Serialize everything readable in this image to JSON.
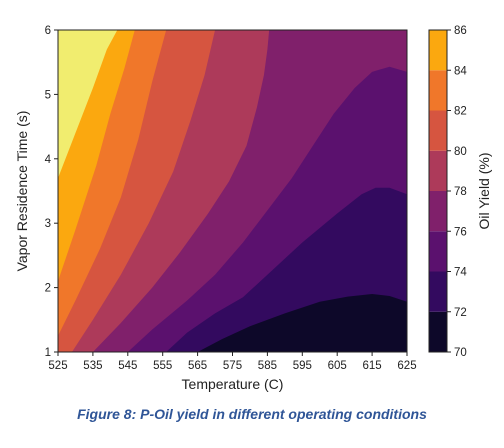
{
  "chart_data": {
    "type": "heatmap",
    "subtype": "filled-contour",
    "xlabel": "Temperature (C)",
    "ylabel": "Vapor Residence Time (s)",
    "colorbar_label": "Oil Yield (%)",
    "xlim": [
      525,
      625
    ],
    "ylim": [
      1,
      6
    ],
    "x_ticks": [
      "525",
      "535",
      "545",
      "555",
      "565",
      "575",
      "585",
      "595",
      "605",
      "615",
      "625"
    ],
    "y_ticks": [
      "1",
      "2",
      "3",
      "4",
      "5",
      "6"
    ],
    "colorbar_ticks": [
      "70",
      "72",
      "74",
      "76",
      "78",
      "80",
      "82",
      "84",
      "86"
    ],
    "levels": [
      70,
      72,
      74,
      76,
      78,
      80,
      82,
      84,
      86
    ],
    "level_colors": [
      "#0d0829",
      "#330a5f",
      "#5b116e",
      "#80206b",
      "#ad3a5a",
      "#d65540",
      "#f0772a",
      "#fba80f",
      "#f1ed6f"
    ],
    "contour_boundaries": [
      {
        "value": 72,
        "points": [
          [
            565,
            1.0
          ],
          [
            572,
            1.2
          ],
          [
            580,
            1.4
          ],
          [
            590,
            1.6
          ],
          [
            600,
            1.78
          ],
          [
            608,
            1.86
          ],
          [
            615,
            1.9
          ],
          [
            620,
            1.87
          ],
          [
            625,
            1.78
          ]
        ]
      },
      {
        "value": 74,
        "points": [
          [
            556,
            1.0
          ],
          [
            562,
            1.3
          ],
          [
            570,
            1.6
          ],
          [
            578,
            1.85
          ],
          [
            585,
            2.2
          ],
          [
            595,
            2.7
          ],
          [
            605,
            3.15
          ],
          [
            612,
            3.45
          ],
          [
            616,
            3.55
          ],
          [
            620,
            3.55
          ],
          [
            625,
            3.45
          ]
        ]
      },
      {
        "value": 76,
        "points": [
          [
            545,
            1.0
          ],
          [
            552,
            1.35
          ],
          [
            562,
            1.8
          ],
          [
            570,
            2.2
          ],
          [
            578,
            2.7
          ],
          [
            585,
            3.2
          ],
          [
            592,
            3.7
          ],
          [
            598,
            4.2
          ],
          [
            604,
            4.7
          ],
          [
            610,
            5.1
          ],
          [
            615,
            5.35
          ],
          [
            620,
            5.43
          ],
          [
            625,
            5.35
          ]
        ]
      },
      {
        "value": 78,
        "points": [
          [
            535,
            1.0
          ],
          [
            543,
            1.45
          ],
          [
            552,
            2.0
          ],
          [
            560,
            2.55
          ],
          [
            568,
            3.15
          ],
          [
            574,
            3.65
          ],
          [
            579,
            4.2
          ],
          [
            582,
            4.8
          ],
          [
            584,
            5.3
          ],
          [
            585,
            5.7
          ],
          [
            585.5,
            6.0
          ]
        ]
      },
      {
        "value": 80,
        "points": [
          [
            529,
            1.0
          ],
          [
            535,
            1.5
          ],
          [
            543,
            2.2
          ],
          [
            551,
            3.0
          ],
          [
            558,
            3.8
          ],
          [
            563,
            4.6
          ],
          [
            567,
            5.3
          ],
          [
            570,
            6.0
          ]
        ]
      },
      {
        "value": 82,
        "points": [
          [
            525,
            1.25
          ],
          [
            530,
            1.8
          ],
          [
            537,
            2.6
          ],
          [
            543,
            3.4
          ],
          [
            548,
            4.3
          ],
          [
            552,
            5.2
          ],
          [
            556,
            6.0
          ]
        ]
      },
      {
        "value": 84,
        "points": [
          [
            525,
            2.1
          ],
          [
            530,
            2.9
          ],
          [
            536,
            3.9
          ],
          [
            540,
            4.7
          ],
          [
            544,
            5.4
          ],
          [
            547,
            6.0
          ]
        ]
      },
      {
        "value": 86,
        "points": [
          [
            525,
            3.7
          ],
          [
            530,
            4.4
          ],
          [
            535,
            5.1
          ],
          [
            539,
            5.7
          ],
          [
            542,
            6.0
          ]
        ]
      }
    ],
    "legend": "colorbar-right",
    "grid": false
  },
  "caption": "Figure 8: P-Oil yield in different operating conditions"
}
